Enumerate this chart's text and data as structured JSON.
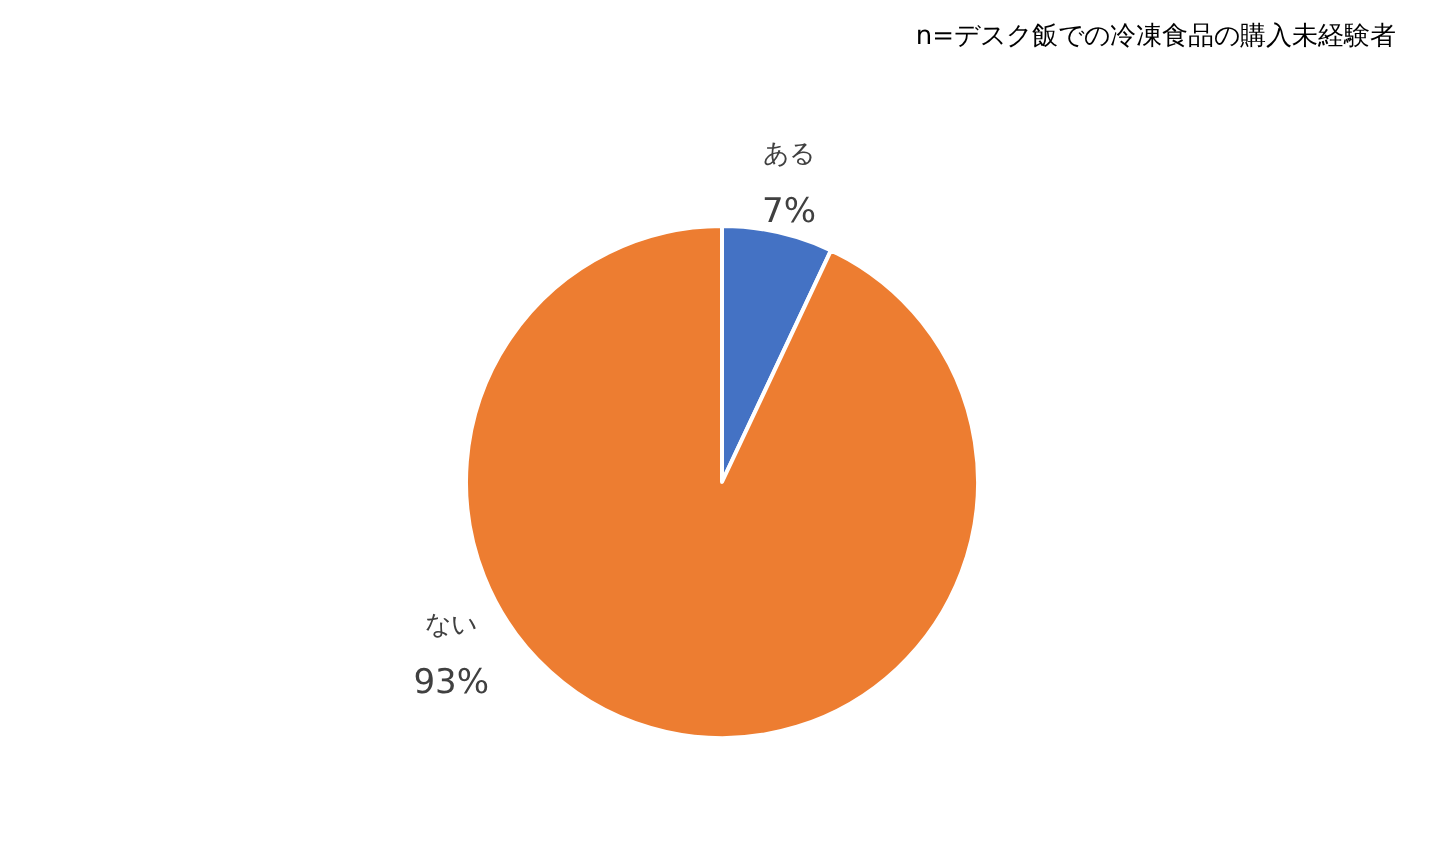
{
  "chart_data": {
    "type": "pie",
    "categories": [
      "ある",
      "ない"
    ],
    "values": [
      7,
      93
    ],
    "colors": [
      "#4472c4",
      "#ed7d31"
    ],
    "value_labels": [
      "7%",
      "93%"
    ],
    "annotations": [
      "n=デスク飯での冷凍食品の購入未経験者"
    ]
  }
}
